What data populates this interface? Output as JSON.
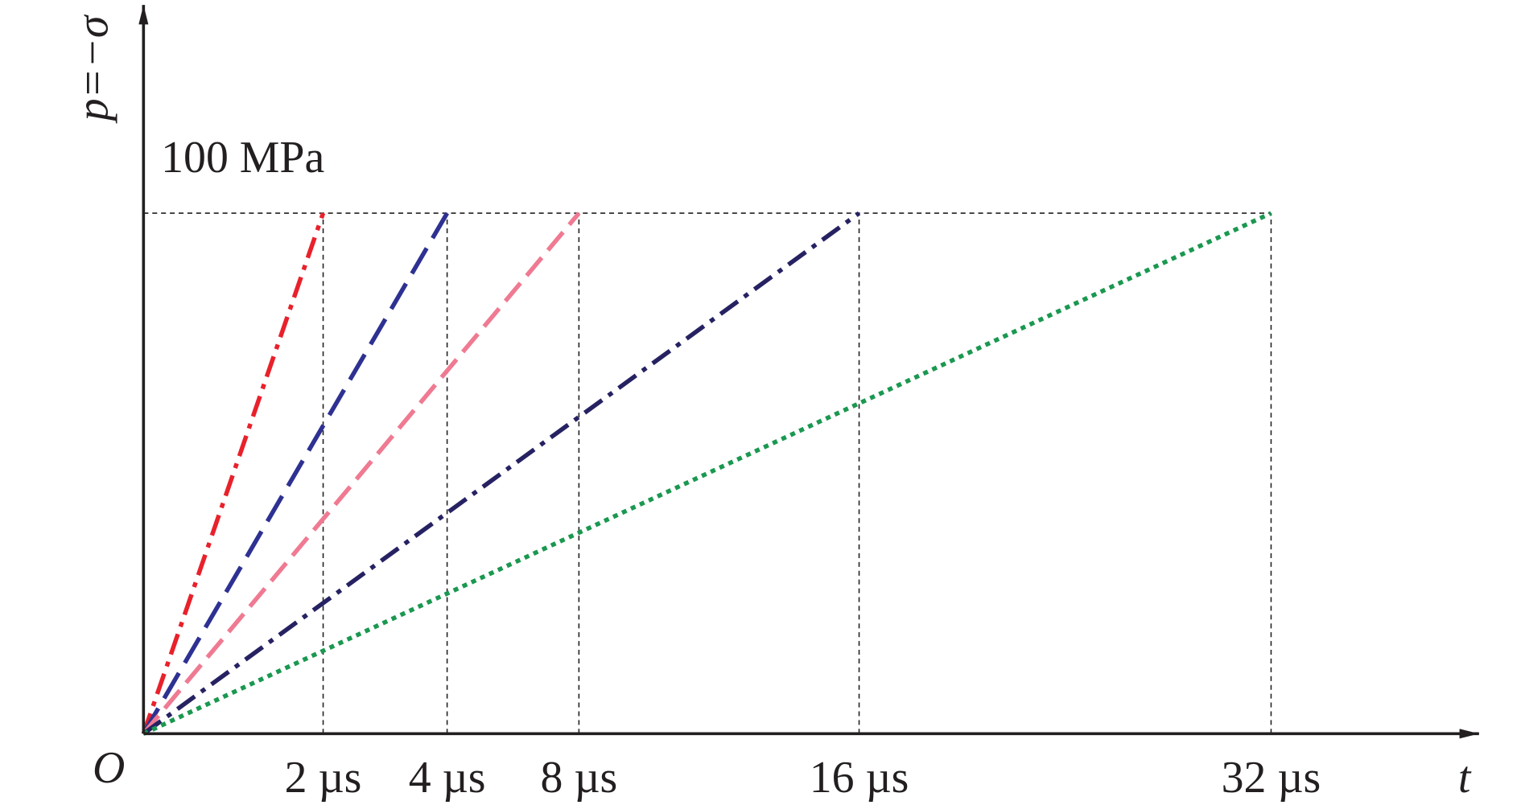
{
  "chart_data": {
    "type": "line",
    "origin_label": "O",
    "xlabel": "t",
    "ylabel": "p=−σ",
    "xlim": [
      0,
      40
    ],
    "xticks": [
      {
        "value": 2,
        "label": "2 µs"
      },
      {
        "value": 4,
        "label": "4 µs"
      },
      {
        "value": 8,
        "label": "8 µs"
      },
      {
        "value": 16,
        "label": "16 µs"
      },
      {
        "value": 32,
        "label": "32 µs"
      }
    ],
    "ylim": [
      0,
      140
    ],
    "yticks": [
      {
        "value": 100,
        "label": "100 MPa"
      }
    ],
    "grid": true,
    "series": [
      {
        "color": "#e8212b",
        "dash": "dash-dot",
        "x": [
          0,
          2
        ],
        "values": [
          0,
          100
        ]
      },
      {
        "color": "#2e3192",
        "dash": "long-dash",
        "x": [
          0,
          4
        ],
        "values": [
          0,
          100
        ]
      },
      {
        "color": "#ef7a92",
        "dash": "dash",
        "x": [
          0,
          8
        ],
        "values": [
          0,
          100
        ]
      },
      {
        "color": "#262262",
        "dash": "dash-dot",
        "x": [
          0,
          16
        ],
        "values": [
          0,
          100
        ]
      },
      {
        "color": "#1a9850",
        "dash": "dot",
        "x": [
          0,
          32
        ],
        "values": [
          0,
          100
        ]
      }
    ]
  }
}
